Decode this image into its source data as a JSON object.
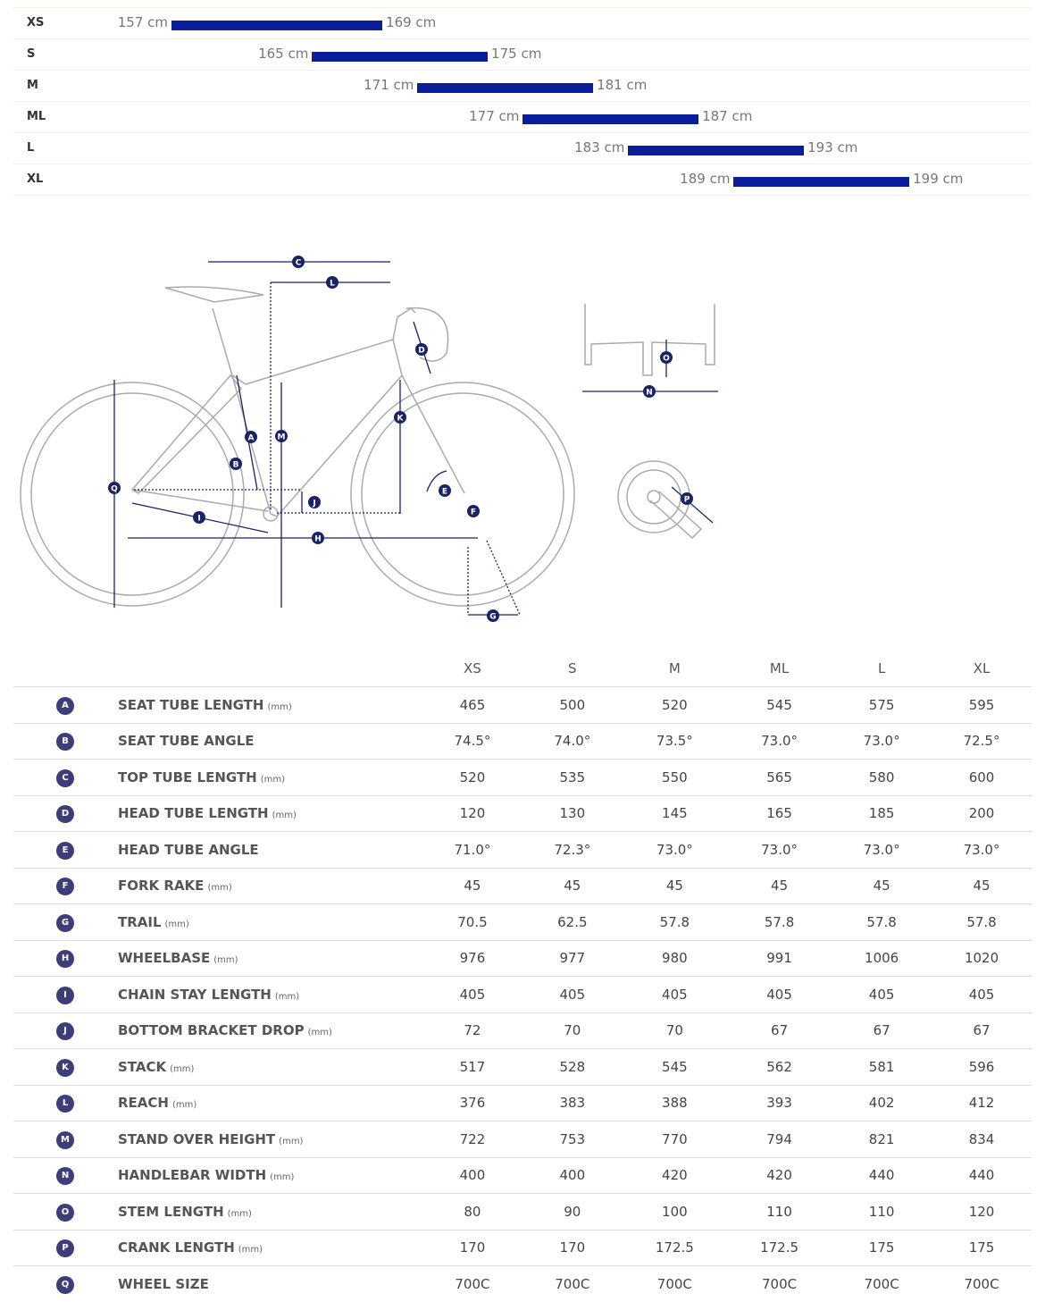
{
  "height_chart": {
    "unit": "cm",
    "rows": [
      {
        "size": "XS",
        "min": 157,
        "max": 169,
        "min_label": "157 cm",
        "max_label": "169 cm"
      },
      {
        "size": "S",
        "min": 165,
        "max": 175,
        "min_label": "165 cm",
        "max_label": "175 cm"
      },
      {
        "size": "M",
        "min": 171,
        "max": 181,
        "min_label": "171 cm",
        "max_label": "181 cm"
      },
      {
        "size": "ML",
        "min": 177,
        "max": 187,
        "min_label": "177 cm",
        "max_label": "187 cm"
      },
      {
        "size": "L",
        "min": 183,
        "max": 193,
        "min_label": "183 cm",
        "max_label": "193 cm"
      },
      {
        "size": "XL",
        "min": 189,
        "max": 199,
        "min_label": "189 cm",
        "max_label": "199 cm"
      }
    ],
    "bar_color": "#0a1e9c"
  },
  "diagram": {
    "labels": [
      "A",
      "B",
      "C",
      "D",
      "E",
      "F",
      "G",
      "H",
      "I",
      "J",
      "K",
      "L",
      "M",
      "N",
      "O",
      "P",
      "Q"
    ],
    "accent": "#1a2366"
  },
  "geometry": {
    "sizes": [
      "XS",
      "S",
      "M",
      "ML",
      "L",
      "XL"
    ],
    "rows": [
      {
        "key": "A",
        "name": "SEAT TUBE LENGTH",
        "unit": "(mm)",
        "values": [
          "465",
          "500",
          "520",
          "545",
          "575",
          "595"
        ]
      },
      {
        "key": "B",
        "name": "SEAT TUBE ANGLE",
        "unit": "",
        "values": [
          "74.5°",
          "74.0°",
          "73.5°",
          "73.0°",
          "73.0°",
          "72.5°"
        ]
      },
      {
        "key": "C",
        "name": "TOP TUBE LENGTH",
        "unit": "(mm)",
        "values": [
          "520",
          "535",
          "550",
          "565",
          "580",
          "600"
        ]
      },
      {
        "key": "D",
        "name": "HEAD TUBE LENGTH",
        "unit": "(mm)",
        "values": [
          "120",
          "130",
          "145",
          "165",
          "185",
          "200"
        ]
      },
      {
        "key": "E",
        "name": "HEAD TUBE ANGLE",
        "unit": "",
        "values": [
          "71.0°",
          "72.3°",
          "73.0°",
          "73.0°",
          "73.0°",
          "73.0°"
        ]
      },
      {
        "key": "F",
        "name": "FORK RAKE",
        "unit": "(mm)",
        "values": [
          "45",
          "45",
          "45",
          "45",
          "45",
          "45"
        ]
      },
      {
        "key": "G",
        "name": "TRAIL",
        "unit": "(mm)",
        "values": [
          "70.5",
          "62.5",
          "57.8",
          "57.8",
          "57.8",
          "57.8"
        ]
      },
      {
        "key": "H",
        "name": "WHEELBASE",
        "unit": "(mm)",
        "values": [
          "976",
          "977",
          "980",
          "991",
          "1006",
          "1020"
        ]
      },
      {
        "key": "I",
        "name": "CHAIN STAY LENGTH",
        "unit": "(mm)",
        "values": [
          "405",
          "405",
          "405",
          "405",
          "405",
          "405"
        ]
      },
      {
        "key": "J",
        "name": "BOTTOM BRACKET DROP",
        "unit": "(mm)",
        "values": [
          "72",
          "70",
          "70",
          "67",
          "67",
          "67"
        ]
      },
      {
        "key": "K",
        "name": "STACK",
        "unit": "(mm)",
        "values": [
          "517",
          "528",
          "545",
          "562",
          "581",
          "596"
        ]
      },
      {
        "key": "L",
        "name": "REACH",
        "unit": "(mm)",
        "values": [
          "376",
          "383",
          "388",
          "393",
          "402",
          "412"
        ]
      },
      {
        "key": "M",
        "name": "STAND OVER HEIGHT",
        "unit": "(mm)",
        "values": [
          "722",
          "753",
          "770",
          "794",
          "821",
          "834"
        ]
      },
      {
        "key": "N",
        "name": "HANDLEBAR WIDTH",
        "unit": "(mm)",
        "values": [
          "400",
          "400",
          "420",
          "420",
          "440",
          "440"
        ]
      },
      {
        "key": "O",
        "name": "STEM LENGTH",
        "unit": "(mm)",
        "values": [
          "80",
          "90",
          "100",
          "110",
          "110",
          "120"
        ]
      },
      {
        "key": "P",
        "name": "CRANK LENGTH",
        "unit": "(mm)",
        "values": [
          "170",
          "170",
          "172.5",
          "172.5",
          "175",
          "175"
        ]
      },
      {
        "key": "Q",
        "name": "WHEEL SIZE",
        "unit": "",
        "values": [
          "700C",
          "700C",
          "700C",
          "700C",
          "700C",
          "700C"
        ]
      }
    ]
  }
}
